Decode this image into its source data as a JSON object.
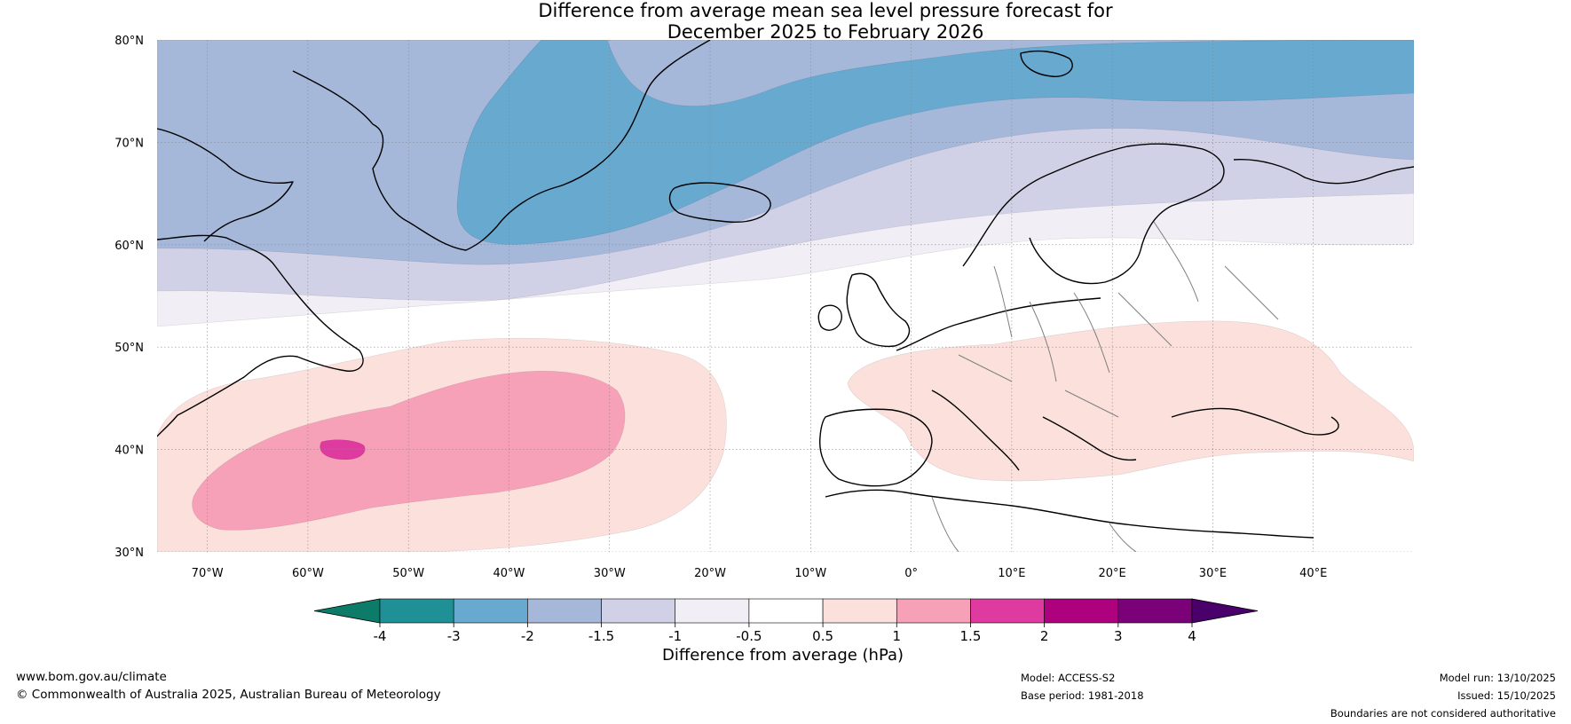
{
  "title": {
    "line1": "Difference from average mean sea level pressure forecast for",
    "line2": "December 2025 to February 2026"
  },
  "map": {
    "region": "North Atlantic and Europe",
    "lat_range": [
      30,
      80
    ],
    "lon_range": [
      -75,
      50
    ],
    "lat_labels": [
      "30°N",
      "40°N",
      "50°N",
      "60°N",
      "70°N",
      "80°N"
    ],
    "lon_labels": [
      "70°W",
      "60°W",
      "50°W",
      "40°W",
      "30°W",
      "20°W",
      "10°W",
      "0°",
      "10°E",
      "20°E",
      "30°E",
      "40°E"
    ],
    "colors": {
      "band_m4_m3": "#1f9096",
      "band_m3_m2": "#67a9cf",
      "band_m2_m15": "#a6b8da",
      "band_m15_m1": "#d0d1e6",
      "band_m1_m05": "#f1eef6",
      "band_05_1": "#fbe0dc",
      "band_1_15": "#f7a1b9",
      "band_15_2": "#de3aa0",
      "coast": "#000000",
      "border": "#7f7f7f"
    }
  },
  "colorbar": {
    "label": "Difference from average (hPa)",
    "ticks": [
      "-4",
      "-3",
      "-2",
      "-1.5",
      "-1",
      "-0.5",
      "0.5",
      "1",
      "1.5",
      "2",
      "3",
      "4"
    ],
    "colors": [
      "#0c7b68",
      "#1f9096",
      "#67a9cf",
      "#a6b8da",
      "#d0d1e6",
      "#f1eef6",
      "#ffffff",
      "#fbe0dc",
      "#f7a1b9",
      "#de3aa0",
      "#ae017e",
      "#7a0177",
      "#49006a"
    ]
  },
  "footer": {
    "website": "www.bom.gov.au/climate",
    "copyright": "© Commonwealth of Australia 2025, Australian Bureau of Meteorology",
    "model": "Model: ACCESS-S2",
    "base_period": "Base period: 1981-2018",
    "model_run": "Model run: 13/10/2025",
    "issued": "Issued: 15/10/2025",
    "disclaimer": "Boundaries are not considered authoritative"
  }
}
